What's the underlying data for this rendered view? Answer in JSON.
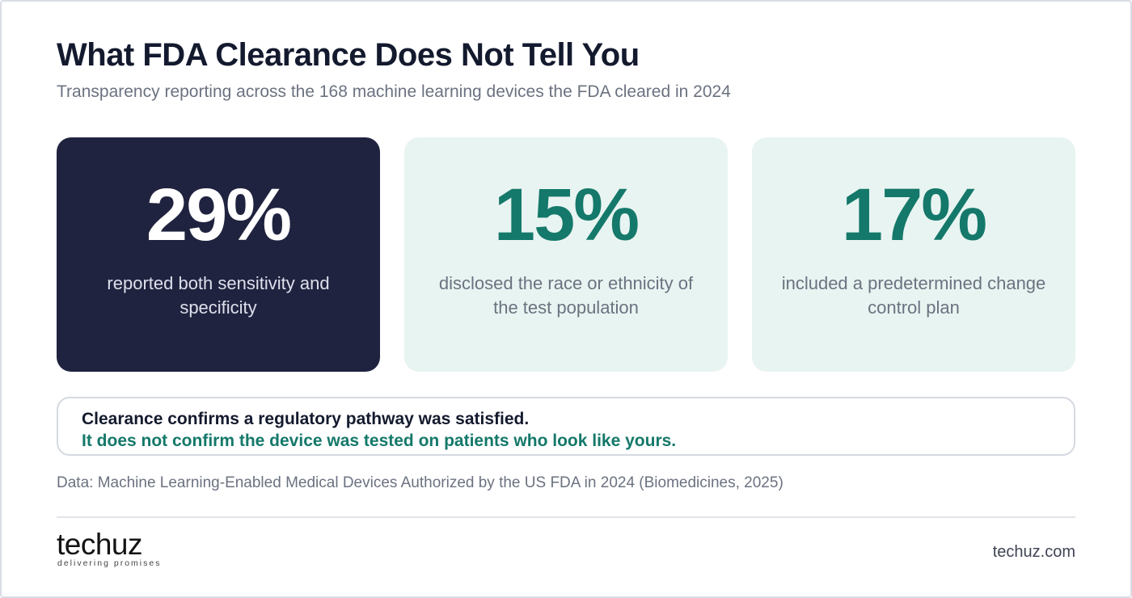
{
  "header": {
    "title": "What FDA Clearance Does Not Tell You",
    "subtitle": "Transparency reporting across the 168 machine learning devices the FDA cleared in 2024"
  },
  "stats": [
    {
      "value": "29%",
      "description": "reported both sensitivity and specificity"
    },
    {
      "value": "15%",
      "description": "disclosed the race or ethnicity of the test population"
    },
    {
      "value": "17%",
      "description": "included a predetermined change control plan"
    }
  ],
  "callout": {
    "line1": "Clearance confirms a regulatory pathway was satisfied.",
    "line2": "It does not confirm the device was tested on patients who look like yours."
  },
  "source": "Data: Machine Learning-Enabled Medical Devices Authorized by the US FDA in 2024 (Biomedicines, 2025)",
  "footer": {
    "logo_wordmark": "techuz",
    "logo_tagline": "delivering promises",
    "site": "techuz.com"
  },
  "colors": {
    "dark_card": "#20233f",
    "light_card": "#e8f4f1",
    "accent_teal": "#14786a",
    "title": "#141a2e",
    "muted_text": "#6b7280"
  }
}
